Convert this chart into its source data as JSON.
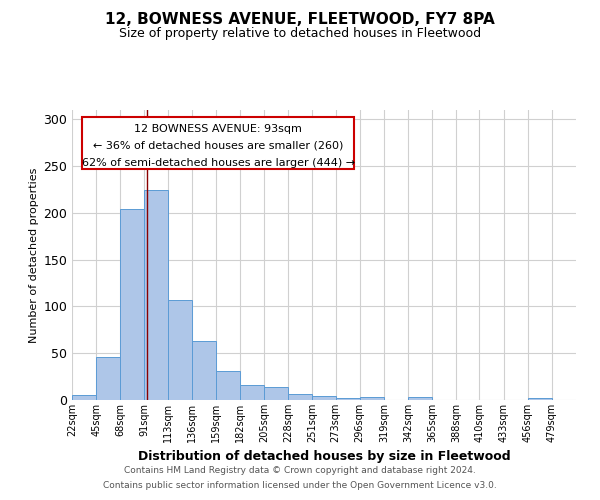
{
  "title1": "12, BOWNESS AVENUE, FLEETWOOD, FY7 8PA",
  "title2": "Size of property relative to detached houses in Fleetwood",
  "xlabel": "Distribution of detached houses by size in Fleetwood",
  "ylabel": "Number of detached properties",
  "footer1": "Contains HM Land Registry data © Crown copyright and database right 2024.",
  "footer2": "Contains public sector information licensed under the Open Government Licence v3.0.",
  "annotation_line1": "12 BOWNESS AVENUE: 93sqm",
  "annotation_line2": "← 36% of detached houses are smaller (260)",
  "annotation_line3": "62% of semi-detached houses are larger (444) →",
  "bar_left_edges": [
    22,
    45,
    68,
    91,
    113,
    136,
    159,
    182,
    205,
    228,
    251,
    273,
    296,
    319,
    342,
    365,
    388,
    410,
    433,
    456,
    479
  ],
  "bar_heights": [
    5,
    46,
    204,
    225,
    107,
    63,
    31,
    16,
    14,
    6,
    4,
    2,
    3,
    0,
    3,
    0,
    0,
    0,
    0,
    2,
    0
  ],
  "bar_widths": [
    23,
    23,
    23,
    22,
    23,
    23,
    23,
    23,
    23,
    23,
    22,
    23,
    23,
    23,
    23,
    23,
    22,
    23,
    23,
    23,
    23
  ],
  "bar_color": "#aec6e8",
  "bar_edge_color": "#5b9bd5",
  "property_line_x": 93,
  "property_line_color": "#8b0000",
  "ylim": [
    0,
    310
  ],
  "xlim": [
    22,
    502
  ],
  "yticks": [
    0,
    50,
    100,
    150,
    200,
    250,
    300
  ],
  "tick_labels": [
    "22sqm",
    "45sqm",
    "68sqm",
    "91sqm",
    "113sqm",
    "136sqm",
    "159sqm",
    "182sqm",
    "205sqm",
    "228sqm",
    "251sqm",
    "273sqm",
    "296sqm",
    "319sqm",
    "342sqm",
    "365sqm",
    "388sqm",
    "410sqm",
    "433sqm",
    "456sqm",
    "479sqm"
  ],
  "annotation_box_color": "#cc0000",
  "background_color": "#ffffff",
  "grid_color": "#d0d0d0",
  "title1_fontsize": 11,
  "title2_fontsize": 9,
  "xlabel_fontsize": 9,
  "ylabel_fontsize": 8,
  "footer_fontsize": 6.5,
  "tick_fontsize": 7,
  "ann_fontsize": 8
}
